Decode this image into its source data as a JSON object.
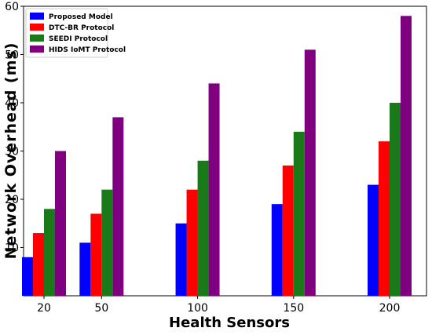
{
  "chart_data": {
    "type": "bar",
    "categories": [
      "20",
      "50",
      "100",
      "150",
      "200"
    ],
    "x": [
      20,
      50,
      100,
      150,
      200
    ],
    "series": [
      {
        "name": "Proposed Model",
        "color": "#0000ff",
        "values": [
          8,
          11,
          15,
          19,
          23
        ]
      },
      {
        "name": "DTC-BR Protocol",
        "color": "#ff0000",
        "values": [
          13,
          17,
          22,
          27,
          32
        ]
      },
      {
        "name": "SEEDI Protocol",
        "color": "#1a7a1a",
        "values": [
          18,
          22,
          28,
          34,
          40
        ]
      },
      {
        "name": "HIDS IoMT Protocol",
        "color": "#7f007f",
        "values": [
          30,
          37,
          44,
          51,
          58
        ]
      }
    ],
    "xlabel": "Health Sensors",
    "ylabel": "Network Overhead (ms)",
    "ylim": [
      0,
      60
    ],
    "yticks": [
      10,
      20,
      30,
      40,
      50,
      60
    ],
    "grid": false,
    "legend": "top-left"
  }
}
